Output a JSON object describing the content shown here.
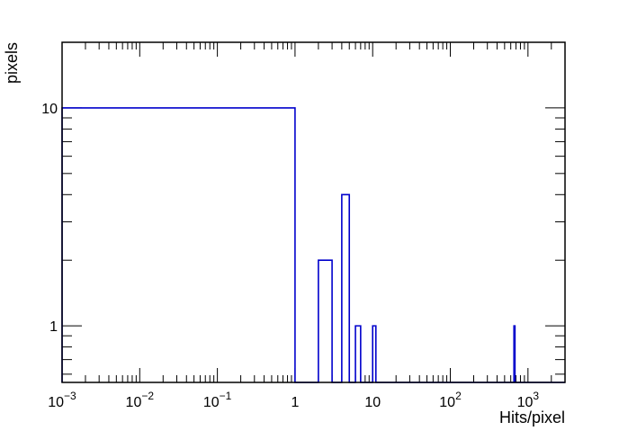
{
  "chart_data": {
    "type": "step-histogram",
    "title": "",
    "xlabel": "Hits/pixel",
    "ylabel": "pixels",
    "x_scale": "log",
    "y_scale": "log",
    "xlim": [
      0.001,
      3000
    ],
    "ylim": [
      0.55,
      20
    ],
    "grid": false,
    "legend": "none",
    "line_color": "#0000cc",
    "x_ticks": [
      {
        "value": 0.001,
        "base": "10",
        "exp": "−3"
      },
      {
        "value": 0.01,
        "base": "10",
        "exp": "−2"
      },
      {
        "value": 0.1,
        "base": "10",
        "exp": "−1"
      },
      {
        "value": 1,
        "base": "1",
        "exp": ""
      },
      {
        "value": 10,
        "base": "10",
        "exp": ""
      },
      {
        "value": 100,
        "base": "10",
        "exp": "2"
      },
      {
        "value": 1000,
        "base": "10",
        "exp": "3"
      }
    ],
    "y_ticks": [
      {
        "value": 1,
        "label": "1"
      },
      {
        "value": 10,
        "label": "10"
      }
    ],
    "bins": [
      {
        "x_low": 0.001,
        "x_high": 1,
        "count": 10
      },
      {
        "x_low": 2,
        "x_high": 3,
        "count": 2
      },
      {
        "x_low": 4,
        "x_high": 5,
        "count": 4
      },
      {
        "x_low": 6,
        "x_high": 7,
        "count": 1
      },
      {
        "x_low": 10,
        "x_high": 11,
        "count": 1
      },
      {
        "x_low": 660,
        "x_high": 680,
        "count": 1
      }
    ]
  }
}
